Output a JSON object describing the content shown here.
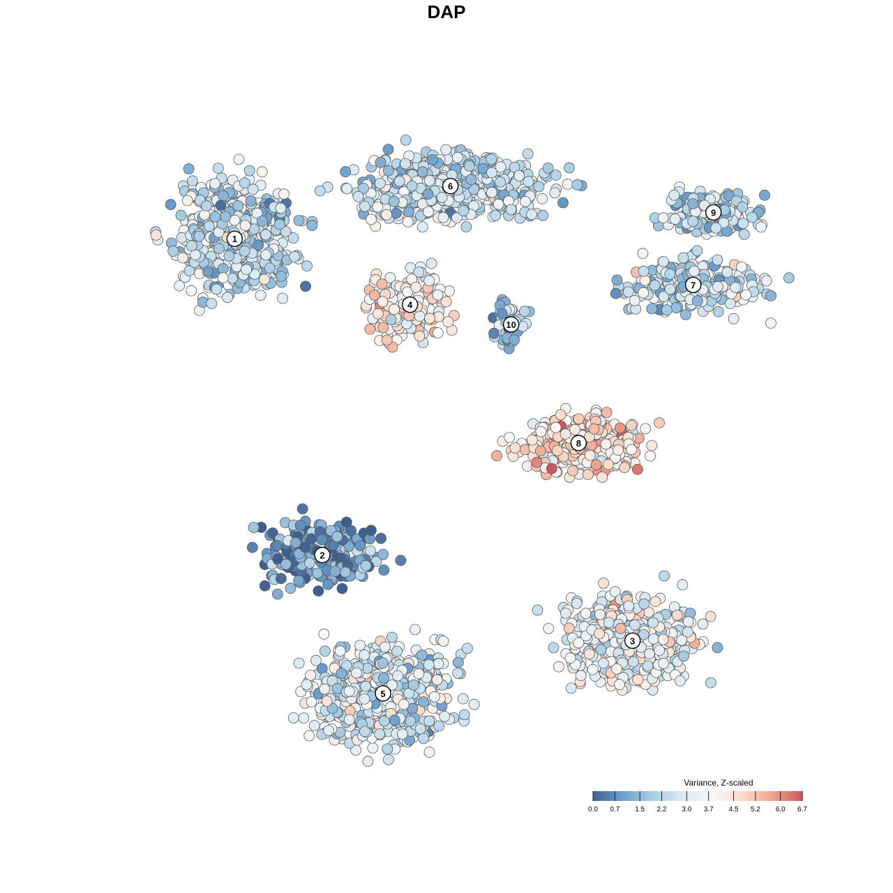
{
  "chart_data": {
    "type": "scatter",
    "title": "DAP",
    "xlabel": "",
    "ylabel": "",
    "grid": false,
    "axes_visible": false,
    "color_scale": {
      "title": "Variance, Z-scaled",
      "min": 0.0,
      "max": 6.7,
      "ticks": [
        "0.0",
        "0.7",
        "1.5",
        "2.2",
        "3.0",
        "3.7",
        "4.5",
        "5.2",
        "6.0",
        "6.7"
      ],
      "stops": [
        "#3f5f8f",
        "#6f9fcc",
        "#a9cde3",
        "#dceaf3",
        "#f7f7f7",
        "#f9dccb",
        "#efa58c",
        "#cd5662"
      ],
      "placement": "bottom-right"
    },
    "clusters": [
      {
        "label": "1",
        "x": 2.1,
        "y": 8.6,
        "value": 2.6
      },
      {
        "label": "2",
        "x": 3.4,
        "y": 3.8,
        "value": 0.8
      },
      {
        "label": "3",
        "x": 8.0,
        "y": 2.5,
        "value": 3.4
      },
      {
        "label": "4",
        "x": 4.7,
        "y": 7.6,
        "value": 3.9
      },
      {
        "label": "5",
        "x": 4.3,
        "y": 1.7,
        "value": 2.9
      },
      {
        "label": "6",
        "x": 5.3,
        "y": 9.4,
        "value": 2.5
      },
      {
        "label": "7",
        "x": 8.9,
        "y": 7.9,
        "value": 2.6
      },
      {
        "label": "8",
        "x": 7.2,
        "y": 5.5,
        "value": 4.6
      },
      {
        "label": "9",
        "x": 9.2,
        "y": 9.0,
        "value": 2.3
      },
      {
        "label": "10",
        "x": 6.2,
        "y": 7.3,
        "value": 2.0
      }
    ]
  }
}
